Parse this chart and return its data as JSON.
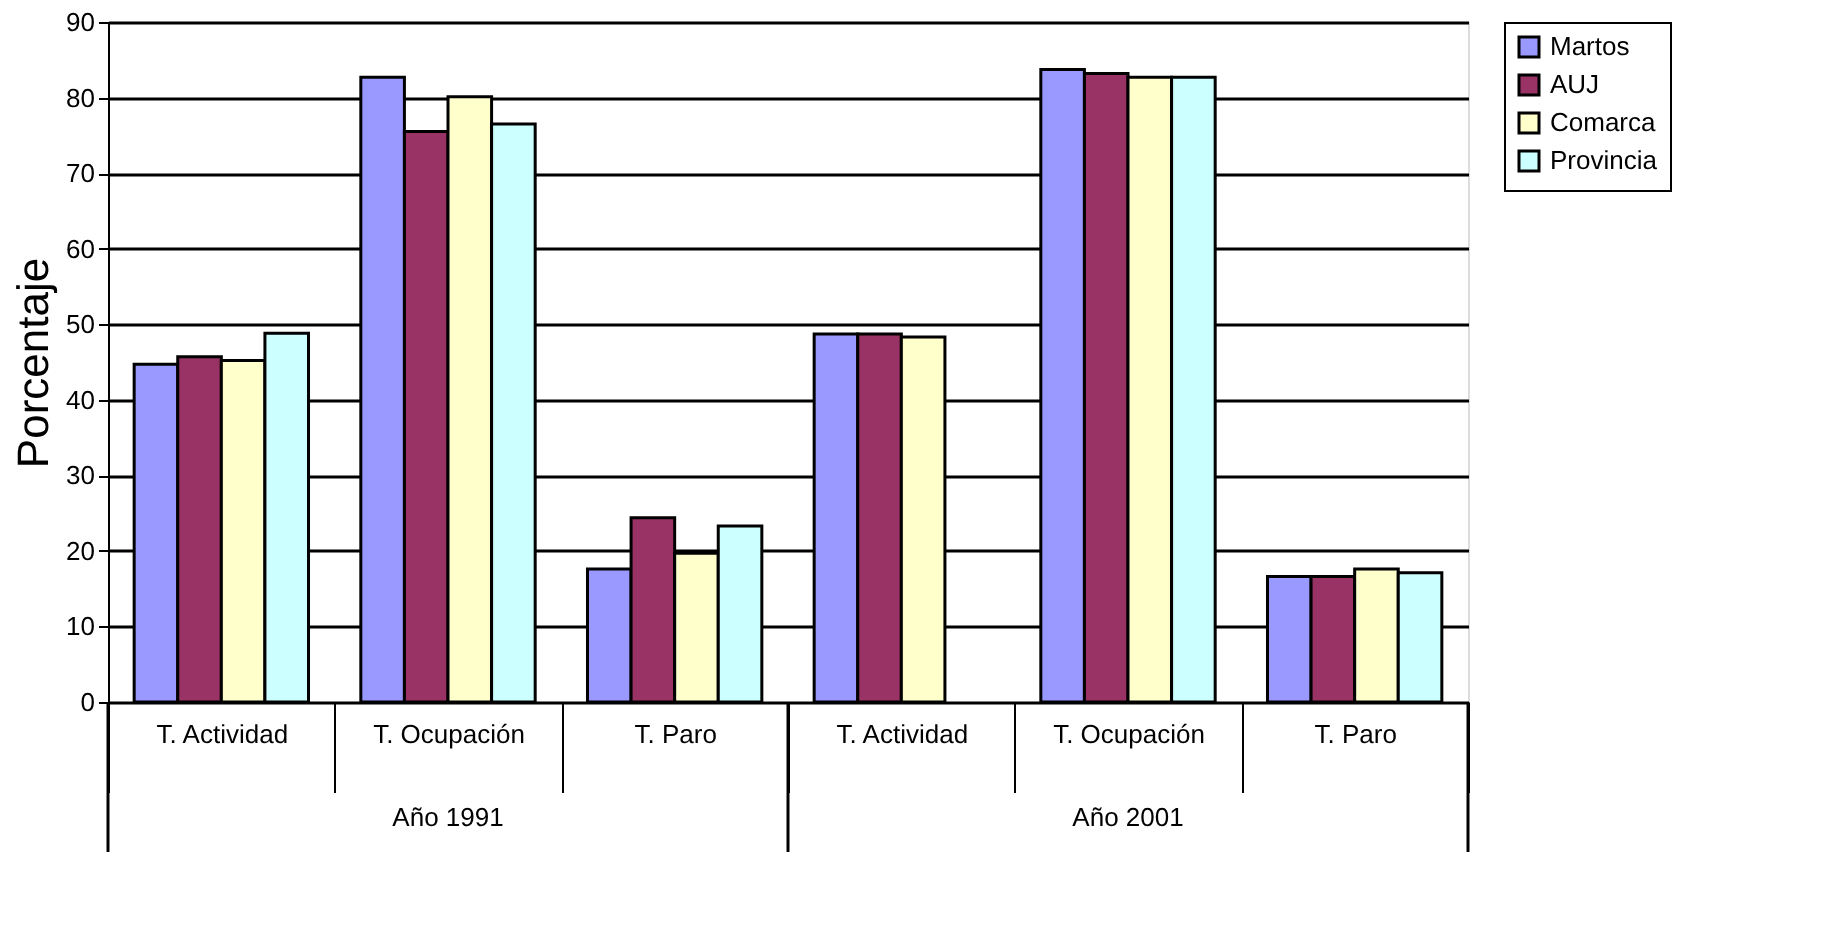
{
  "chart_data": {
    "type": "bar",
    "ylabel": "Porcentaje",
    "categories": [
      "T. Actividad",
      "T. Ocupación",
      "T. Paro",
      "T. Actividad",
      "T. Ocupación",
      "T. Paro"
    ],
    "annotations": [
      "Año 1991",
      "Año 2001"
    ],
    "series": [
      {
        "name": "Martos",
        "color": "#9999ff",
        "values": [
          44.7,
          82.7,
          17.6,
          48.7,
          83.7,
          16.6
        ]
      },
      {
        "name": "AUJ",
        "color": "#993366",
        "values": [
          45.7,
          75.5,
          24.4,
          48.7,
          83.2,
          16.6
        ]
      },
      {
        "name": "Comarca",
        "color": "#ffffcc",
        "values": [
          45.2,
          80.1,
          19.7,
          48.3,
          82.7,
          17.6
        ]
      },
      {
        "name": "Provincia",
        "color": "#ccffff",
        "values": [
          48.8,
          76.5,
          23.3,
          null,
          82.7,
          17.1
        ]
      }
    ],
    "ylim": [
      0,
      90
    ],
    "yticks": [
      0,
      10,
      20,
      30,
      40,
      50,
      60,
      70,
      80,
      90
    ],
    "grid": "y",
    "legend": "right"
  }
}
